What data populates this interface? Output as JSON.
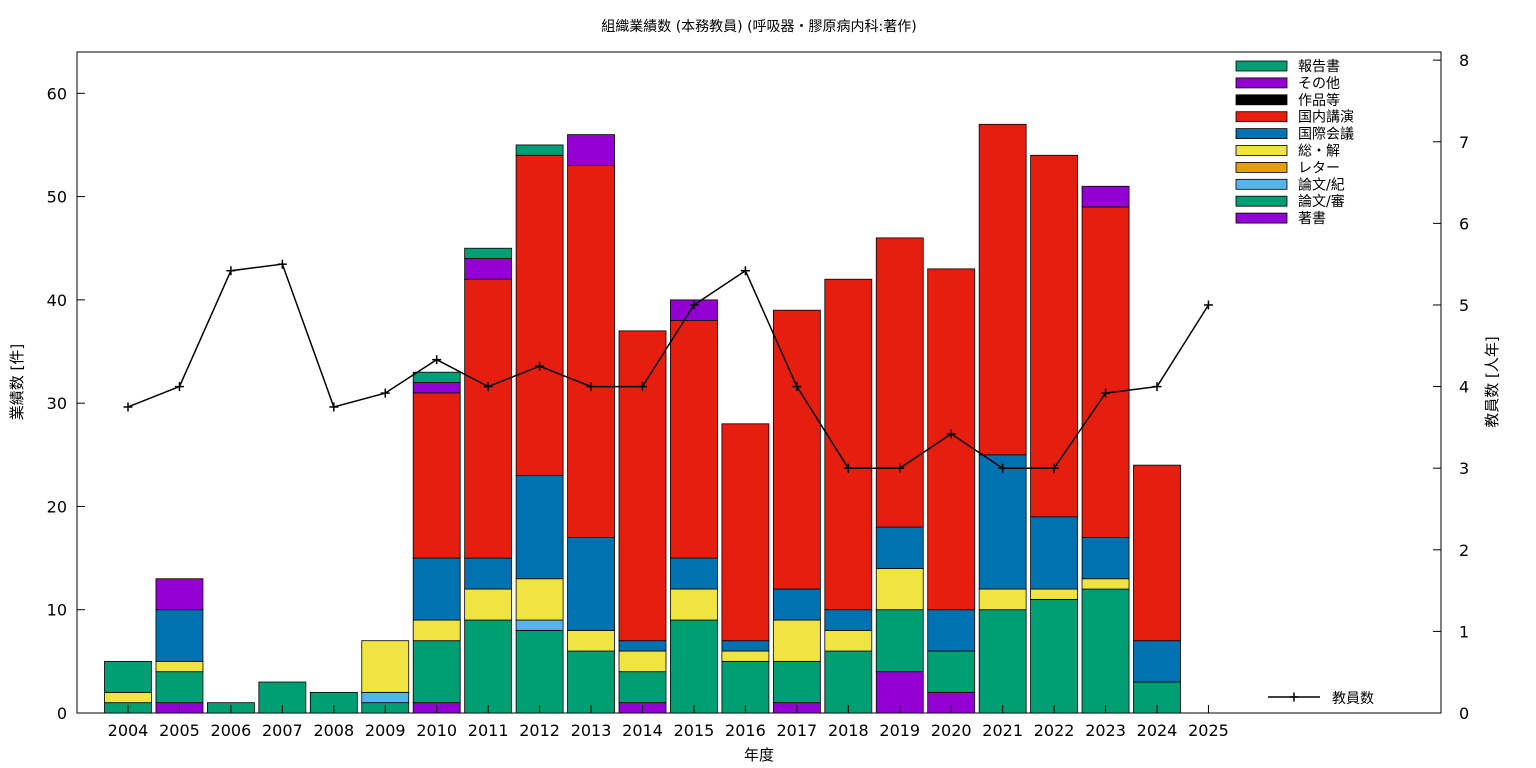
{
  "chart_data": {
    "type": "bar",
    "title": "組織業績数 (本務教員) (呼吸器・膠原病内科:著作)",
    "xlabel": "年度",
    "ylabel": "業績数 [件]",
    "y2label": "教員数 [人年]",
    "ylim": [
      0,
      64
    ],
    "y2lim": [
      0,
      8.1
    ],
    "yticks": [
      0,
      10,
      20,
      30,
      40,
      50,
      60
    ],
    "y2ticks": [
      0,
      1,
      2,
      3,
      4,
      5,
      6,
      7,
      8
    ],
    "categories": [
      "2004",
      "2005",
      "2006",
      "2007",
      "2008",
      "2009",
      "2010",
      "2011",
      "2012",
      "2013",
      "2014",
      "2015",
      "2016",
      "2017",
      "2018",
      "2019",
      "2020",
      "2021",
      "2022",
      "2023",
      "2024",
      "2025"
    ],
    "stack_order_bottom_to_top": [
      "著書",
      "論文/審",
      "論文/紀",
      "レター",
      "総・解",
      "国際会議",
      "国内講演",
      "作品等",
      "その他",
      "報告書"
    ],
    "legend_order": [
      "報告書",
      "その他",
      "作品等",
      "国内講演",
      "国際会議",
      "総・解",
      "レター",
      "論文/紀",
      "論文/審",
      "著書"
    ],
    "series": [
      {
        "name": "著書",
        "color": "#9400d3",
        "values": [
          0,
          1,
          0,
          0,
          0,
          0,
          1,
          0,
          0,
          0,
          1,
          0,
          0,
          1,
          0,
          4,
          2,
          0,
          0,
          0,
          0,
          0
        ]
      },
      {
        "name": "論文/審",
        "color": "#009e73",
        "values": [
          1,
          3,
          1,
          3,
          2,
          1,
          6,
          9,
          8,
          6,
          3,
          9,
          5,
          4,
          6,
          6,
          4,
          10,
          11,
          12,
          3,
          0
        ]
      },
      {
        "name": "論文/紀",
        "color": "#56b4e9",
        "values": [
          0,
          0,
          0,
          0,
          0,
          1,
          0,
          0,
          1,
          0,
          0,
          0,
          0,
          0,
          0,
          0,
          0,
          0,
          0,
          0,
          0,
          0
        ]
      },
      {
        "name": "レター",
        "color": "#e69f00",
        "values": [
          0,
          0,
          0,
          0,
          0,
          0,
          0,
          0,
          0,
          0,
          0,
          0,
          0,
          0,
          0,
          0,
          0,
          0,
          0,
          0,
          0,
          0
        ]
      },
      {
        "name": "総・解",
        "color": "#f0e442",
        "values": [
          1,
          1,
          0,
          0,
          0,
          5,
          2,
          3,
          4,
          2,
          2,
          3,
          1,
          4,
          2,
          4,
          0,
          2,
          1,
          1,
          0,
          0
        ]
      },
      {
        "name": "国際会議",
        "color": "#0072b2",
        "values": [
          0,
          5,
          0,
          0,
          0,
          0,
          6,
          3,
          10,
          9,
          1,
          3,
          1,
          3,
          2,
          4,
          4,
          13,
          7,
          4,
          4,
          0
        ]
      },
      {
        "name": "国内講演",
        "color": "#e51e10",
        "values": [
          0,
          0,
          0,
          0,
          0,
          0,
          16,
          27,
          31,
          36,
          30,
          23,
          21,
          27,
          32,
          28,
          33,
          32,
          35,
          32,
          17,
          0
        ]
      },
      {
        "name": "作品等",
        "color": "#000000",
        "values": [
          0,
          0,
          0,
          0,
          0,
          0,
          0,
          0,
          0,
          0,
          0,
          0,
          0,
          0,
          0,
          0,
          0,
          0,
          0,
          0,
          0,
          0
        ]
      },
      {
        "name": "その他",
        "color": "#9400d3",
        "values": [
          0,
          3,
          0,
          0,
          0,
          0,
          1,
          2,
          0,
          3,
          0,
          2,
          0,
          0,
          0,
          0,
          0,
          0,
          0,
          2,
          0,
          0
        ]
      },
      {
        "name": "報告書",
        "color": "#009e73",
        "values": [
          3,
          0,
          0,
          0,
          0,
          0,
          1,
          1,
          1,
          0,
          0,
          0,
          0,
          0,
          0,
          0,
          0,
          0,
          0,
          0,
          0,
          0
        ]
      }
    ],
    "line_series": {
      "name": "教員数",
      "axis": "right",
      "values": [
        3.75,
        4.0,
        5.42,
        5.5,
        3.75,
        3.92,
        4.33,
        4.0,
        4.25,
        4.0,
        4.0,
        5.0,
        5.42,
        4.0,
        3.0,
        3.0,
        3.42,
        3.0,
        3.0,
        3.92,
        4.0,
        5.0
      ]
    }
  }
}
